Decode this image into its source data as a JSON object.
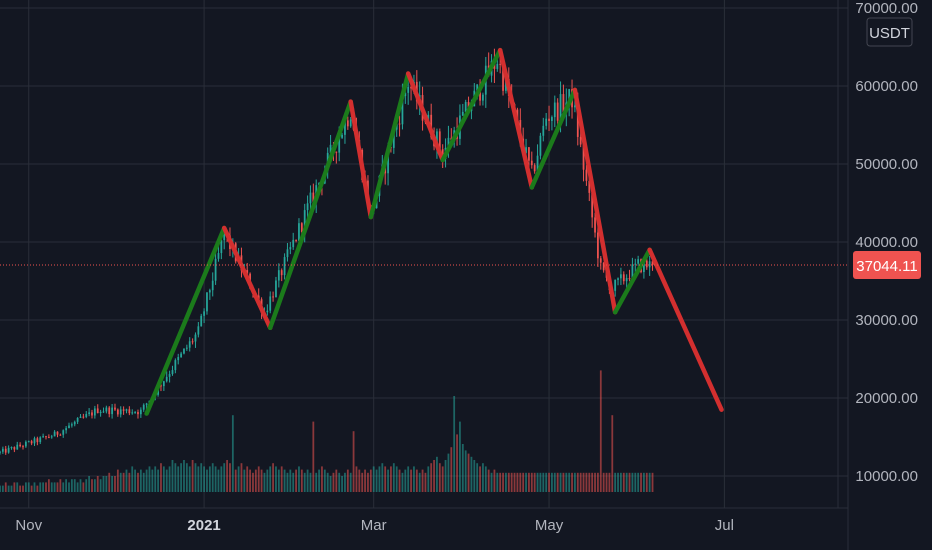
{
  "chart_data": {
    "type": "candlestick",
    "title": "",
    "unit_label": "USDT",
    "last_price": 37044.11,
    "last_price_label": "37044.11",
    "y_ticks": [
      10000,
      20000,
      30000,
      40000,
      50000,
      60000,
      70000
    ],
    "y_tick_labels": [
      "10000.00",
      "20000.00",
      "30000.00",
      "40000.00",
      "50000.00",
      "60000.00",
      "70000.00"
    ],
    "ylim": [
      7000,
      71000
    ],
    "x_ticks": [
      {
        "label": "Nov",
        "date": "2020-11-01",
        "bold": false
      },
      {
        "label": "2021",
        "date": "2021-01-01",
        "bold": true
      },
      {
        "label": "Mar",
        "date": "2021-03-01",
        "bold": false
      },
      {
        "label": "May",
        "date": "2021-05-01",
        "bold": false
      },
      {
        "label": "Jul",
        "date": "2021-07-01",
        "bold": false
      }
    ],
    "xlim": [
      "2020-10-22",
      "2021-08-13"
    ],
    "grid": true,
    "colors": {
      "background": "#131722",
      "grid": "#2a2e39",
      "candle_up": "#26a69a",
      "candle_down": "#ef5350",
      "zigzag_up": "#1b7b1b",
      "zigzag_down": "#d32f2f",
      "price_line": "#ef5350"
    },
    "price_anchors": [
      {
        "date": "2020-10-22",
        "price": 13000
      },
      {
        "date": "2020-11-10",
        "price": 15300
      },
      {
        "date": "2020-11-25",
        "price": 18500
      },
      {
        "date": "2020-12-10",
        "price": 18300
      },
      {
        "date": "2020-12-30",
        "price": 28500
      },
      {
        "date": "2021-01-08",
        "price": 41000
      },
      {
        "date": "2021-01-22",
        "price": 31000
      },
      {
        "date": "2021-02-08",
        "price": 46000
      },
      {
        "date": "2021-02-21",
        "price": 57000
      },
      {
        "date": "2021-02-28",
        "price": 43500
      },
      {
        "date": "2021-03-13",
        "price": 60500
      },
      {
        "date": "2021-03-25",
        "price": 51500
      },
      {
        "date": "2021-04-13",
        "price": 63500
      },
      {
        "date": "2021-04-25",
        "price": 48500
      },
      {
        "date": "2021-04-30",
        "price": 56000
      },
      {
        "date": "2021-05-09",
        "price": 58500
      },
      {
        "date": "2021-05-19",
        "price": 36500
      },
      {
        "date": "2021-05-23",
        "price": 34000
      },
      {
        "date": "2021-06-01",
        "price": 37000
      },
      {
        "date": "2021-06-06",
        "price": 37044
      }
    ],
    "volume_series": {
      "name": "Volume",
      "values": [
        2,
        2,
        3,
        2,
        2,
        3,
        3,
        2,
        2,
        3,
        3,
        2,
        3,
        2,
        3,
        3,
        3,
        4,
        3,
        3,
        3,
        4,
        3,
        4,
        3,
        4,
        4,
        3,
        4,
        3,
        4,
        5,
        4,
        4,
        5,
        4,
        5,
        5,
        6,
        5,
        5,
        7,
        6,
        6,
        7,
        6,
        8,
        7,
        6,
        7,
        6,
        7,
        8,
        7,
        8,
        7,
        9,
        8,
        7,
        8,
        10,
        9,
        8,
        9,
        10,
        9,
        8,
        10,
        9,
        8,
        9,
        8,
        7,
        8,
        9,
        8,
        7,
        8,
        9,
        10,
        9,
        8,
        7,
        8,
        9,
        7,
        8,
        7,
        6,
        7,
        8,
        7,
        6,
        7,
        8,
        9,
        8,
        7,
        8,
        7,
        6,
        7,
        6,
        7,
        8,
        7,
        6,
        7,
        6,
        7,
        6,
        7,
        8,
        7,
        6,
        5,
        6,
        7,
        6,
        5,
        6,
        7,
        6,
        7,
        8,
        7,
        6,
        7,
        6,
        7,
        8,
        7,
        8,
        9,
        8,
        7,
        8,
        9,
        8,
        7,
        6,
        7,
        8,
        7,
        8,
        7,
        6,
        7,
        6,
        8,
        9,
        10,
        11,
        9,
        8,
        10,
        12,
        14,
        30,
        18,
        22,
        15,
        13,
        12,
        11,
        10,
        9,
        8,
        9,
        8,
        7,
        6,
        7,
        6
      ],
      "spikes": [
        {
          "date": "2021-01-11",
          "value": 24
        },
        {
          "date": "2021-02-08",
          "value": 22
        },
        {
          "date": "2021-02-22",
          "value": 19
        },
        {
          "date": "2021-05-19",
          "value": 38
        },
        {
          "date": "2021-05-23",
          "value": 24
        }
      ]
    },
    "zigzag": [
      {
        "date": "2020-12-12",
        "price": 18000,
        "direction": "up"
      },
      {
        "date": "2021-01-08",
        "price": 41800,
        "direction": "down"
      },
      {
        "date": "2021-01-24",
        "price": 29000,
        "direction": "up"
      },
      {
        "date": "2021-02-21",
        "price": 58000,
        "direction": "down"
      },
      {
        "date": "2021-02-28",
        "price": 43200,
        "direction": "up"
      },
      {
        "date": "2021-03-13",
        "price": 61600,
        "direction": "down"
      },
      {
        "date": "2021-03-25",
        "price": 50500,
        "direction": "up"
      },
      {
        "date": "2021-04-14",
        "price": 64600,
        "direction": "down"
      },
      {
        "date": "2021-04-25",
        "price": 47000,
        "direction": "up"
      },
      {
        "date": "2021-05-10",
        "price": 59500,
        "direction": "down"
      },
      {
        "date": "2021-05-24",
        "price": 31000,
        "direction": "up"
      },
      {
        "date": "2021-06-05",
        "price": 39000,
        "direction": "down"
      },
      {
        "date": "2021-06-30",
        "price": 18500,
        "direction": "none"
      }
    ]
  }
}
